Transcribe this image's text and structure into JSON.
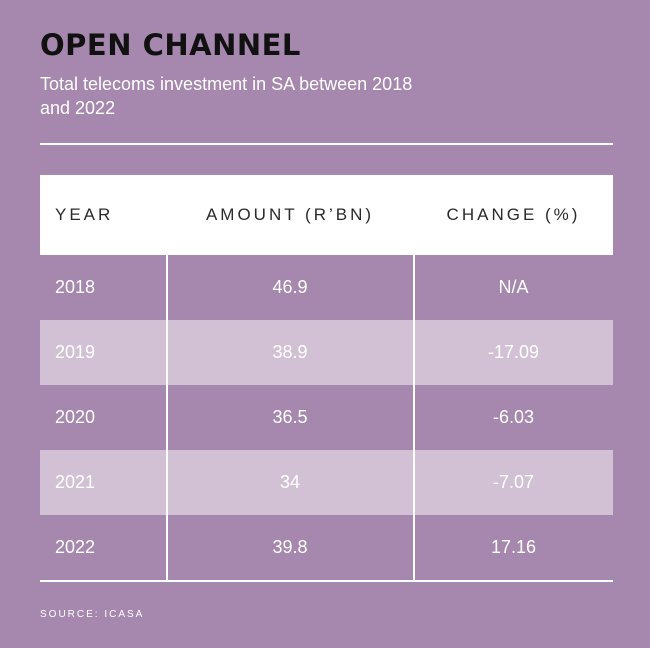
{
  "title": "OPEN CHANNEL",
  "subtitle": "Total telecoms investment in SA between 2018 and 2022",
  "source": "SOURCE: ICASA",
  "colors": {
    "background": "#a687ad",
    "header_bg": "#ffffff",
    "shaded_row": "#d2c1d4",
    "title_text": "#111111"
  },
  "chart_data": {
    "type": "table",
    "title": "OPEN CHANNEL",
    "subtitle": "Total telecoms investment in SA between 2018 and 2022",
    "columns": [
      "YEAR",
      "AMOUNT (R’BN)",
      "CHANGE (%)"
    ],
    "rows": [
      [
        "2018",
        "46.9",
        "N/A"
      ],
      [
        "2019",
        "38.9",
        "-17.09"
      ],
      [
        "2020",
        "36.5",
        "-6.03"
      ],
      [
        "2021",
        "34",
        "-7.07"
      ],
      [
        "2022",
        "39.8",
        "17.16"
      ]
    ],
    "source": "SOURCE: ICASA"
  }
}
